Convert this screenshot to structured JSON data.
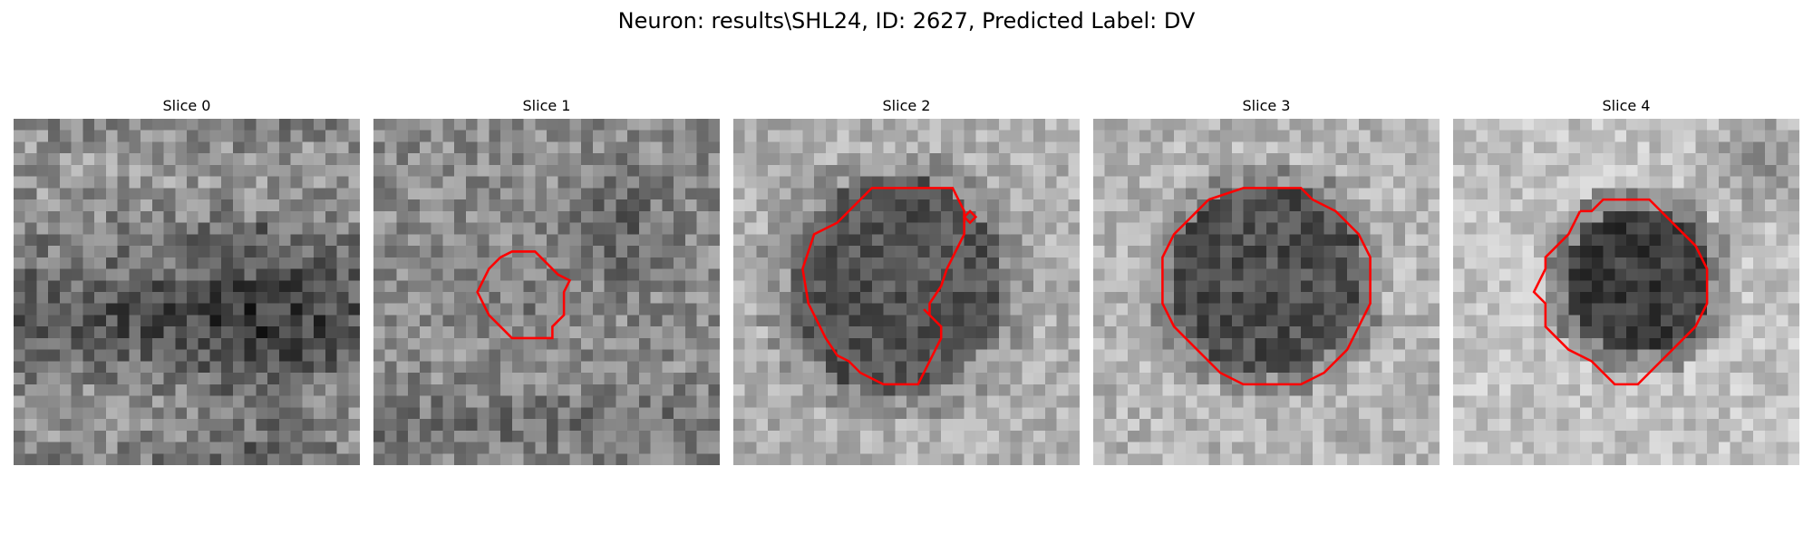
{
  "figure": {
    "suptitle": "Neuron: results\\SHL24, ID: 2627, Predicted Label: DV",
    "colormap": "gray",
    "contour_color": "#ff0000"
  },
  "panels": [
    {
      "title": "Slice 0",
      "has_contour": false
    },
    {
      "title": "Slice 1",
      "has_contour": true
    },
    {
      "title": "Slice 2",
      "has_contour": true
    },
    {
      "title": "Slice 3",
      "has_contour": true
    },
    {
      "title": "Slice 4",
      "has_contour": true
    }
  ]
}
